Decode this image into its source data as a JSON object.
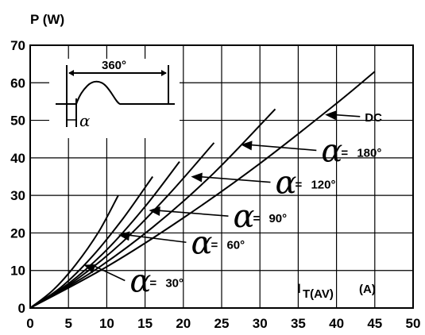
{
  "chart_data": {
    "type": "line",
    "ylabel": "P (W)",
    "xlabel_main": "I",
    "xlabel_sub": "T(AV)",
    "xlabel_unit": "(A)",
    "xlim": [
      0,
      50
    ],
    "ylim": [
      0,
      70
    ],
    "x_ticks": [
      "0",
      "5",
      "10",
      "15",
      "20",
      "25",
      "30",
      "35",
      "40",
      "45",
      "50"
    ],
    "y_ticks": [
      "0",
      "10",
      "20",
      "30",
      "40",
      "50",
      "60",
      "70"
    ],
    "grid": true,
    "series": [
      {
        "name": "30°",
        "x": [
          0,
          3,
          6,
          9,
          11.5
        ],
        "y": [
          0,
          4.8,
          11.7,
          20.5,
          30
        ]
      },
      {
        "name": "60°",
        "x": [
          0,
          4,
          8,
          12,
          16
        ],
        "y": [
          0,
          5.5,
          13.5,
          23.5,
          35
        ]
      },
      {
        "name": "90°",
        "x": [
          0,
          5,
          10,
          15,
          19.5
        ],
        "y": [
          0,
          6.5,
          15.5,
          27,
          39
        ]
      },
      {
        "name": "120°",
        "x": [
          0,
          6,
          12,
          18,
          24
        ],
        "y": [
          0,
          7.5,
          17.5,
          30,
          44
        ]
      },
      {
        "name": "180°",
        "x": [
          0,
          8,
          16,
          24,
          32
        ],
        "y": [
          0,
          9.5,
          21.5,
          36,
          53
        ]
      },
      {
        "name": "DC",
        "x": [
          0,
          10,
          20,
          30,
          40,
          45
        ],
        "y": [
          0,
          11,
          24,
          38.5,
          54.5,
          63
        ]
      }
    ],
    "annotations": [
      {
        "symbol": "α",
        "eq": "=",
        "label": "30°",
        "target": [
          7,
          11.5
        ],
        "text_at": [
          13,
          7.3
        ]
      },
      {
        "symbol": "α",
        "eq": "=",
        "label": "60°",
        "target": [
          11.5,
          19.5
        ],
        "text_at": [
          21,
          17.5
        ]
      },
      {
        "symbol": "α",
        "eq": "=",
        "label": "90°",
        "target": [
          15.5,
          26
        ],
        "text_at": [
          26.5,
          24.5
        ]
      },
      {
        "symbol": "α",
        "eq": "=",
        "label": "120°",
        "target": [
          21,
          35
        ],
        "text_at": [
          32,
          33.5
        ]
      },
      {
        "symbol": "α",
        "eq": "=",
        "label": "180°",
        "target": [
          27.5,
          43.5
        ],
        "text_at": [
          38,
          42
        ]
      },
      {
        "symbol": "",
        "eq": "",
        "label": "DC",
        "target": [
          38.5,
          51.5
        ],
        "text_at": [
          43.7,
          51
        ]
      }
    ],
    "inset": {
      "period_label": "360°",
      "angle_symbol": "α"
    }
  }
}
